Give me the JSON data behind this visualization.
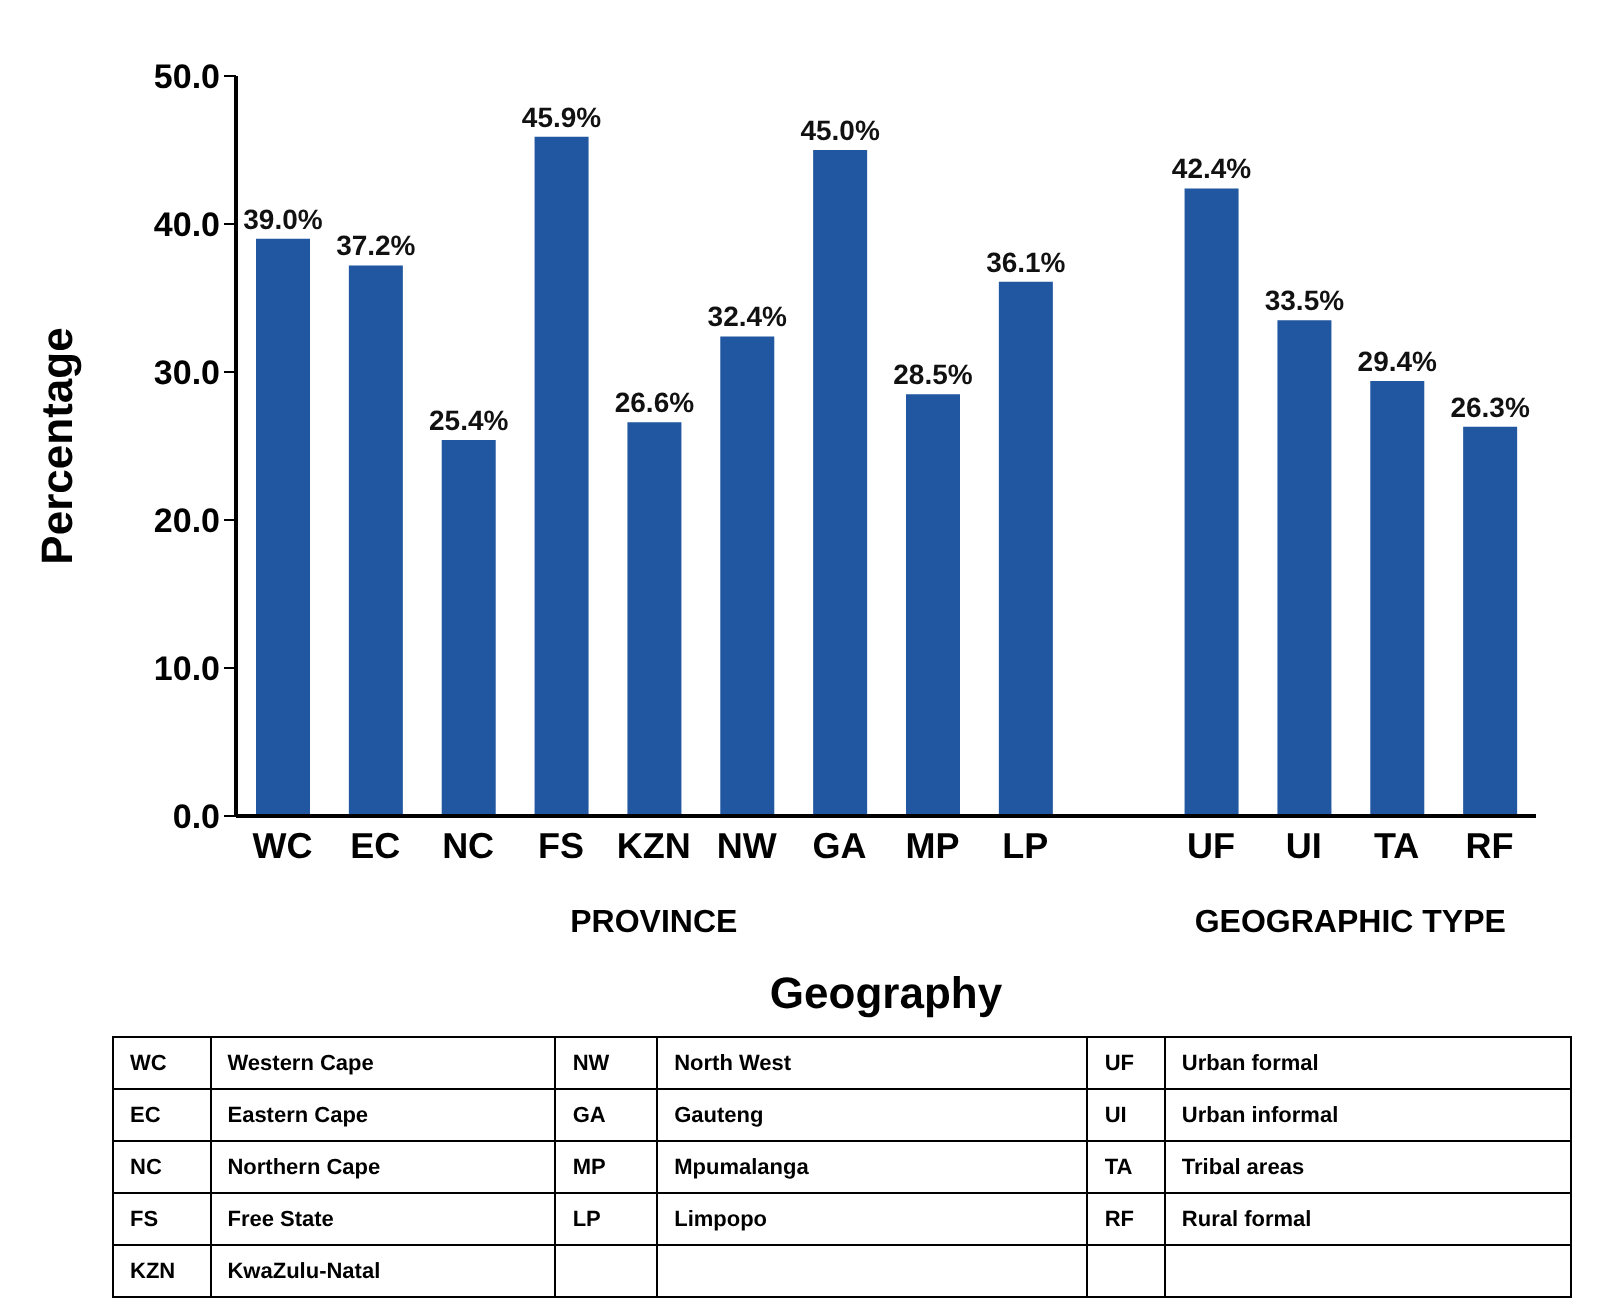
{
  "chart_data": {
    "type": "bar",
    "xlabel": "Geography",
    "ylabel": "Percentage",
    "categories": [
      "WC",
      "EC",
      "NC",
      "FS",
      "KZN",
      "NW",
      "GA",
      "MP",
      "LP",
      null,
      "UF",
      "UI",
      "TA",
      "RF"
    ],
    "values": [
      39.0,
      37.2,
      25.4,
      45.9,
      26.6,
      32.4,
      45.0,
      28.5,
      36.1,
      null,
      42.4,
      33.5,
      29.4,
      26.3
    ],
    "value_labels": [
      "39.0%",
      "37.2%",
      "25.4%",
      "45.9%",
      "26.6%",
      "32.4%",
      "45.0%",
      "28.5%",
      "36.1%",
      null,
      "42.4%",
      "33.5%",
      "29.4%",
      "26.3%"
    ],
    "color": "#2157a0",
    "ylim": [
      0,
      50
    ],
    "yticks": [
      {
        "value": 0,
        "label": "0.0"
      },
      {
        "value": 10,
        "label": "10.0"
      },
      {
        "value": 20,
        "label": "20.0"
      },
      {
        "value": 30,
        "label": "30.0"
      },
      {
        "value": 40,
        "label": "40.0"
      },
      {
        "value": 50,
        "label": "50.0"
      }
    ],
    "annotations": [
      "PROVINCE",
      "GEOGRAPHIC TYPE",
      "WC",
      "Western Cape",
      "EC",
      "Eastern Cape",
      "NC",
      "Northern Cape",
      "FS",
      "Free State",
      "KZN",
      "KwaZulu-Natal",
      "NW",
      "North West",
      "GA",
      "Gauteng",
      "MP",
      "Mpumalanga",
      "LP",
      "Limpopo",
      "UF",
      "Urban formal",
      "UI",
      "Urban informal",
      "TA",
      "Tribal areas",
      "RF",
      "Rural formal"
    ]
  }
}
